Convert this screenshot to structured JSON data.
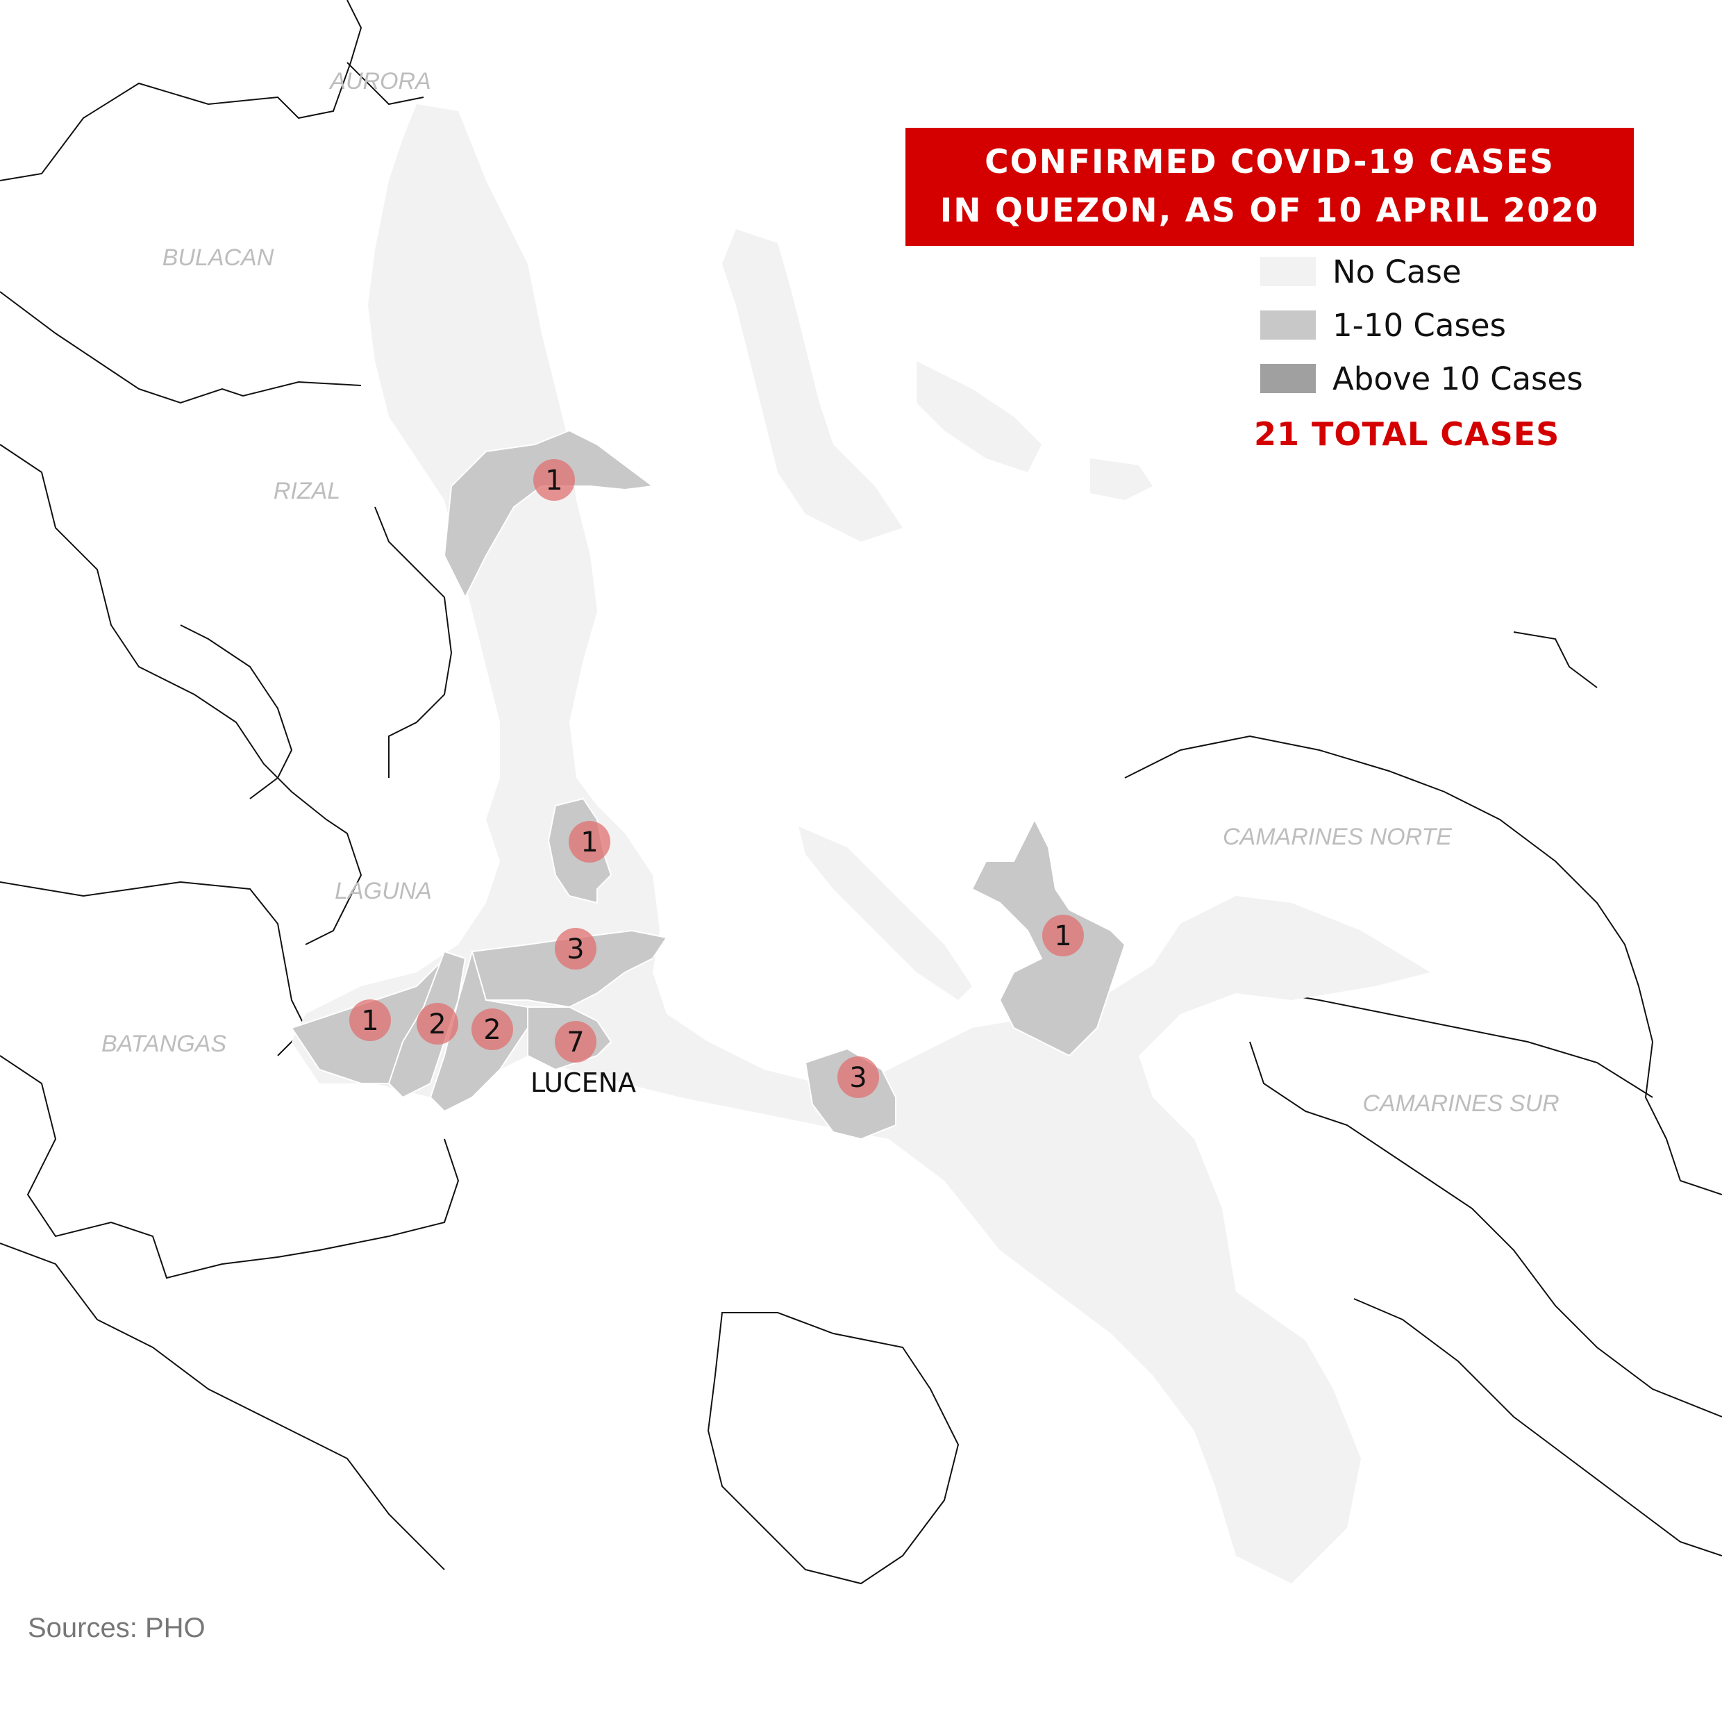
{
  "title": {
    "line1": "CONFIRMED COVID-19 CASES",
    "line2": "IN QUEZON, AS OF 10 APRIL 2020",
    "background_color": "#d40000"
  },
  "legend": [
    {
      "label": "No Case",
      "color": "#f2f2f2"
    },
    {
      "label": "1-10 Cases",
      "color": "#c8c8c8"
    },
    {
      "label": "Above 10 Cases",
      "color": "#a0a0a0"
    }
  ],
  "total_cases": "21 TOTAL CASES",
  "sources": "Sources: PHO",
  "neighbor_provinces": [
    "AURORA",
    "BULACAN",
    "RIZAL",
    "LAGUNA",
    "BATANGAS",
    "CAMARINES NORTE",
    "CAMARINES SUR"
  ],
  "city_label": "LUCENA",
  "case_markers": [
    {
      "count": "1"
    },
    {
      "count": "1"
    },
    {
      "count": "3"
    },
    {
      "count": "1"
    },
    {
      "count": "2"
    },
    {
      "count": "2"
    },
    {
      "count": "7"
    },
    {
      "count": "3"
    },
    {
      "count": "1"
    }
  ],
  "colors": {
    "no_case": "#f2f2f2",
    "cases_1_10": "#c8c8c8",
    "above_10": "#a0a0a0",
    "marker": "#e07070",
    "border": "#111111"
  }
}
